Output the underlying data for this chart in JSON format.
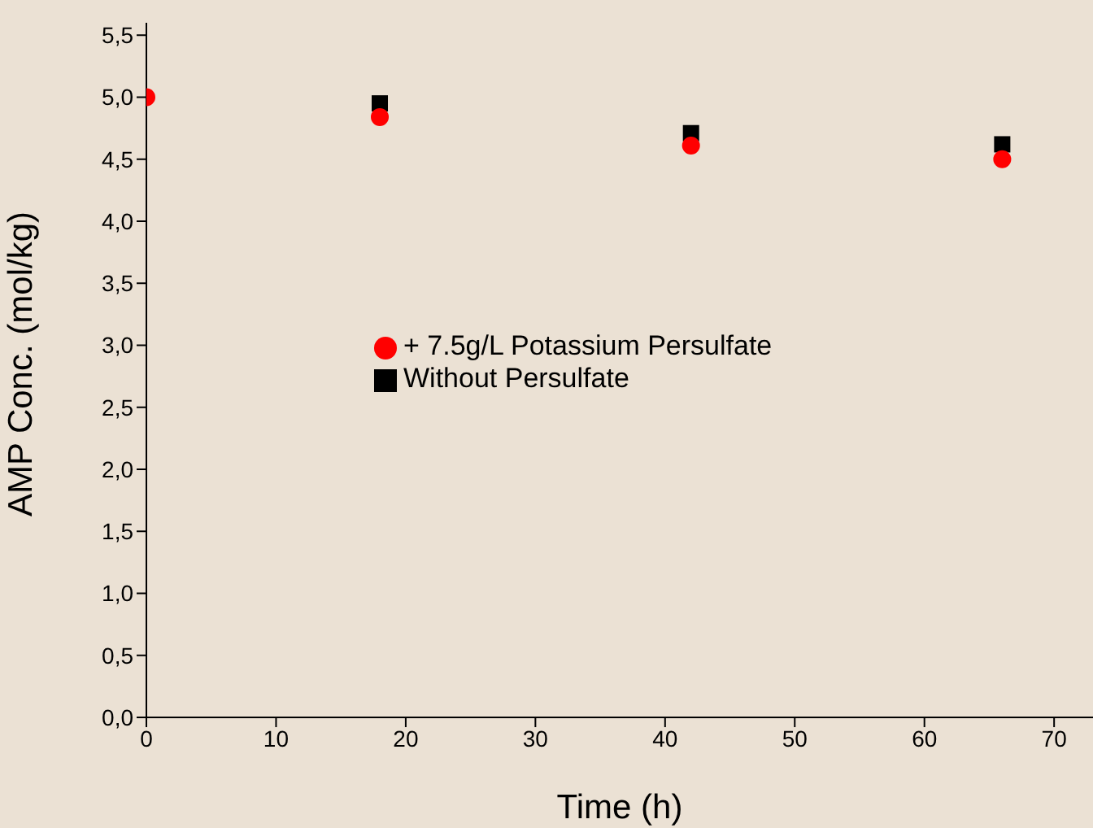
{
  "chart_data": {
    "type": "scatter",
    "xlabel": "Time (h)",
    "ylabel": "AMP Conc. (mol/kg)",
    "x": [
      0,
      18,
      42,
      66
    ],
    "series": [
      {
        "name": "Without Persulfate",
        "color": "#000000",
        "marker": "square",
        "values": [
          null,
          4.95,
          4.71,
          4.62
        ]
      },
      {
        "name": "+ 7.5g/L Potassium Persulfate",
        "color": "#ff0000",
        "marker": "circle",
        "values": [
          5.0,
          4.84,
          4.61,
          4.5
        ]
      }
    ],
    "xlim": [
      0,
      73
    ],
    "xticks": [
      0,
      10,
      20,
      30,
      40,
      50,
      60,
      70
    ],
    "ylim": [
      0,
      5.6
    ],
    "yticks": [
      {
        "value": 0,
        "label": "0,0"
      },
      {
        "value": 0.5,
        "label": "0,5"
      },
      {
        "value": 1,
        "label": "1,0"
      },
      {
        "value": 1.5,
        "label": "1,5"
      },
      {
        "value": 2,
        "label": "2,0"
      },
      {
        "value": 2.5,
        "label": "2,5"
      },
      {
        "value": 3,
        "label": "3,0"
      },
      {
        "value": 3.5,
        "label": "3,5"
      },
      {
        "value": 4,
        "label": "4,0"
      },
      {
        "value": 4.5,
        "label": "4,5"
      },
      {
        "value": 5,
        "label": "5,0"
      },
      {
        "value": 5.5,
        "label": "5,5"
      }
    ],
    "grid": false,
    "legend": "center"
  }
}
